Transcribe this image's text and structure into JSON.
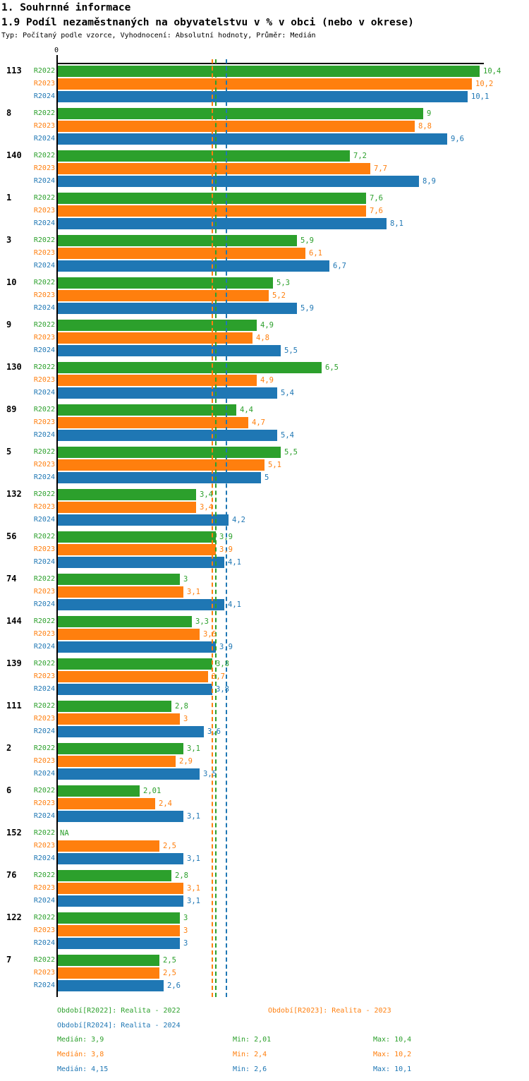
{
  "header": {
    "title": "1. Souhrnné informace",
    "subtitle": "1.9 Podíl nezaměstnaných na obyvatelstvu v % v obci (nebo v okrese)",
    "meta": "Typ: Počítaný podle vzorce, Vyhodnocení: Absolutní hodnoty, Průměr: Medián"
  },
  "axis": {
    "zero_label": "0"
  },
  "colors": {
    "r2022": "#2ca02c",
    "r2023": "#ff7f0e",
    "r2024": "#1f77b4"
  },
  "chart_data": {
    "type": "bar",
    "orientation": "horizontal",
    "title": "1.9 Podíl nezaměstnaných na obyvatelstvu v % v obci (nebo v okrese)",
    "value_axis": {
      "min": 0,
      "tick_labels": [
        "0"
      ],
      "approx_max": 10.5
    },
    "grid": false,
    "legend_position": "bottom",
    "na_text": "NA",
    "categories": [
      "113",
      "8",
      "140",
      "1",
      "3",
      "10",
      "9",
      "130",
      "89",
      "5",
      "132",
      "56",
      "74",
      "144",
      "139",
      "111",
      "2",
      "6",
      "152",
      "76",
      "122",
      "7"
    ],
    "series": [
      {
        "name": "R2022",
        "color": "#2ca02c",
        "values": [
          10.4,
          9,
          7.2,
          7.6,
          5.9,
          5.3,
          4.9,
          6.5,
          4.4,
          5.5,
          3.4,
          3.9,
          3,
          3.3,
          3.8,
          2.8,
          3.1,
          2.01,
          null,
          2.8,
          3,
          2.5
        ],
        "labels": [
          "10,4",
          "9",
          "7,2",
          "7,6",
          "5,9",
          "5,3",
          "4,9",
          "6,5",
          "4,4",
          "5,5",
          "3,4",
          "3,9",
          "3",
          "3,3",
          "3,8",
          "2,8",
          "3,1",
          "2,01",
          "NA",
          "2,8",
          "3",
          "2,5"
        ]
      },
      {
        "name": "R2023",
        "color": "#ff7f0e",
        "values": [
          10.2,
          8.8,
          7.7,
          7.6,
          6.1,
          5.2,
          4.8,
          4.9,
          4.7,
          5.1,
          3.4,
          3.9,
          3.1,
          3.5,
          3.7,
          3,
          2.9,
          2.4,
          2.5,
          3.1,
          3,
          2.5
        ],
        "labels": [
          "10,2",
          "8,8",
          "7,7",
          "7,6",
          "6,1",
          "5,2",
          "4,8",
          "4,9",
          "4,7",
          "5,1",
          "3,4",
          "3,9",
          "3,1",
          "3,5",
          "3,7",
          "3",
          "2,9",
          "2,4",
          "2,5",
          "3,1",
          "3",
          "2,5"
        ]
      },
      {
        "name": "R2024",
        "color": "#1f77b4",
        "values": [
          10.1,
          9.6,
          8.9,
          8.1,
          6.7,
          5.9,
          5.5,
          5.4,
          5.4,
          5,
          4.2,
          4.1,
          4.1,
          3.9,
          3.8,
          3.6,
          3.5,
          3.1,
          3.1,
          3.1,
          3,
          2.6
        ],
        "labels": [
          "10,1",
          "9,6",
          "8,9",
          "8,1",
          "6,7",
          "5,9",
          "5,5",
          "5,4",
          "5,4",
          "5",
          "4,2",
          "4,1",
          "4,1",
          "3,9",
          "3,8",
          "3,6",
          "3,5",
          "3,1",
          "3,1",
          "3,1",
          "3",
          "2,6"
        ]
      }
    ],
    "medians": {
      "R2022": 3.9,
      "R2023": 3.8,
      "R2024": 4.15
    }
  },
  "legend": {
    "items": [
      {
        "label": "Období[R2022]: Realita - 2022"
      },
      {
        "label": "Období[R2023]: Realita - 2023"
      },
      {
        "label": "Období[R2024]: Realita - 2024"
      }
    ]
  },
  "stats": [
    {
      "median": "Medián: 3,9",
      "min": "Min: 2,01",
      "max": "Max: 10,4"
    },
    {
      "median": "Medián: 3,8",
      "min": "Min: 2,4",
      "max": "Max: 10,2"
    },
    {
      "median": "Medián: 4,15",
      "min": "Min: 2,6",
      "max": "Max: 10,1"
    }
  ]
}
